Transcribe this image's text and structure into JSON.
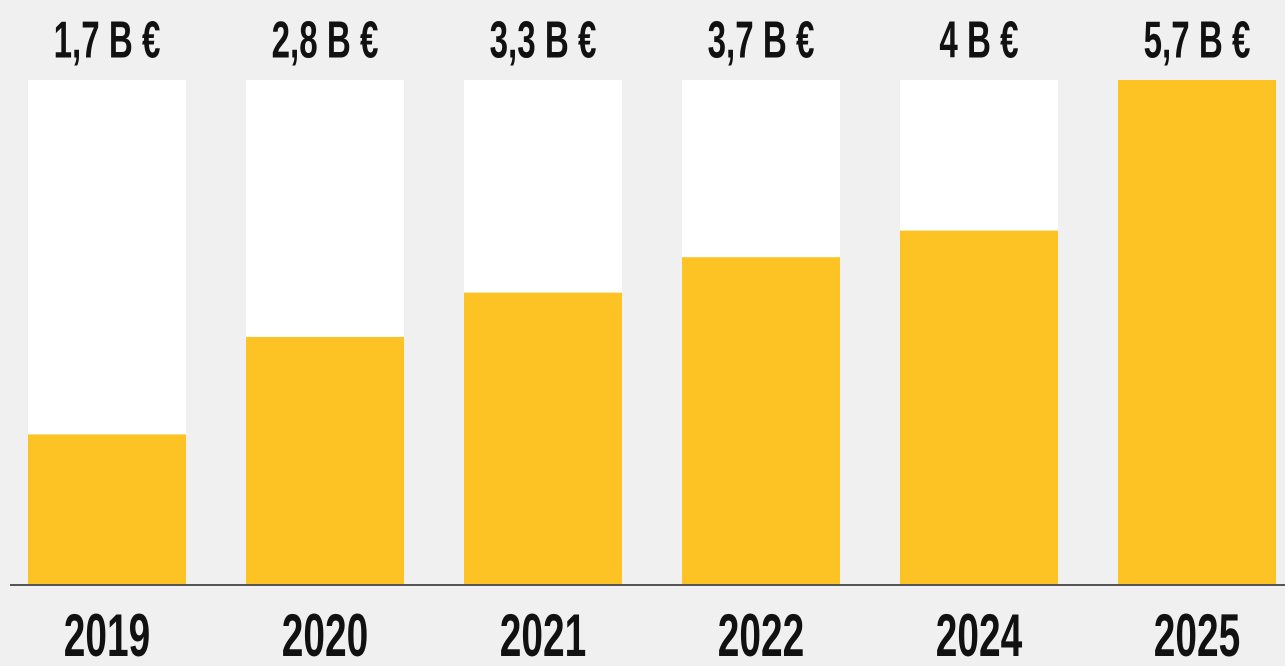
{
  "chart_data": {
    "type": "bar",
    "categories": [
      "2019",
      "2020",
      "2021",
      "2022",
      "2024",
      "2025"
    ],
    "values": [
      1.7,
      2.8,
      3.3,
      3.7,
      4,
      5.7
    ],
    "value_labels": [
      "1,7 B €",
      "2,8 B €",
      "3,3 B €",
      "3,7 B €",
      "4 B €",
      "5,7 B €"
    ],
    "color": "#fdc324",
    "ylim": [
      0,
      5.7
    ]
  }
}
